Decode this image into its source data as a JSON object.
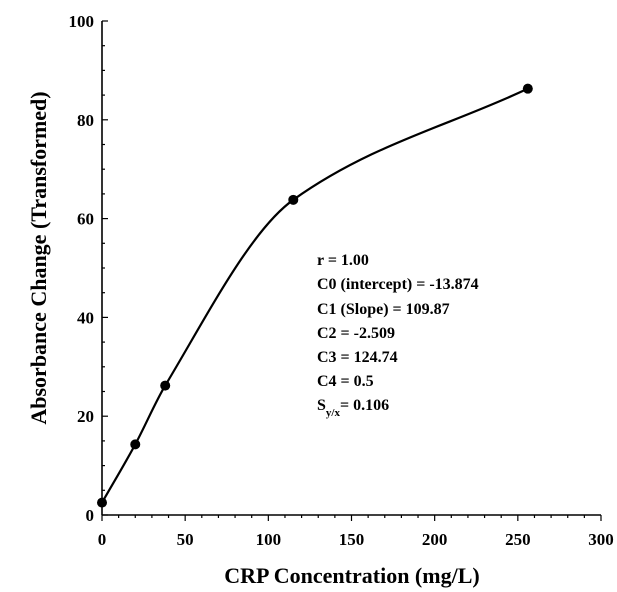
{
  "chart_data": {
    "type": "scatter",
    "xlabel": "CRP Concentration (mg/L)",
    "ylabel": "Absorbance Change (Transformed)",
    "xlim": [
      0,
      300
    ],
    "ylim": [
      0,
      100
    ],
    "x_ticks": [
      0,
      50,
      100,
      150,
      200,
      250,
      300
    ],
    "y_ticks": [
      0,
      20,
      40,
      60,
      80,
      100
    ],
    "grid": false,
    "legend": "none",
    "series": [
      {
        "points": [
          {
            "x": 0,
            "y": 2.5
          },
          {
            "x": 20,
            "y": 14.3
          },
          {
            "x": 38,
            "y": 26.2
          },
          {
            "x": 115,
            "y": 63.8
          },
          {
            "x": 256,
            "y": 86.3
          }
        ],
        "fit_curve": true
      }
    ],
    "annotations": {
      "r": "r = 1.00",
      "c0": "C0 (intercept) = -13.874",
      "c1": "C1 (Slope) = 109.87",
      "c2": "C2 = -2.509",
      "c3": "C3 = 124.74",
      "c4": "C4 = 0.5",
      "syx_main": "S",
      "syx_sub": "y/x",
      "syx_value": "= 0.106"
    }
  }
}
